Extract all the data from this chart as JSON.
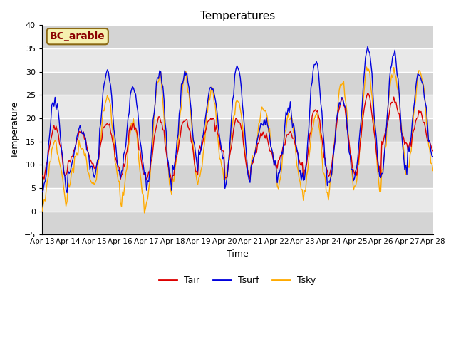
{
  "title": "Temperatures",
  "xlabel": "Time",
  "ylabel": "Temperature",
  "ylim": [
    -5,
    40
  ],
  "yticks": [
    -5,
    0,
    5,
    10,
    15,
    20,
    25,
    30,
    35,
    40
  ],
  "x_tick_labels": [
    "Apr 13",
    "Apr 14",
    "Apr 15",
    "Apr 16",
    "Apr 17",
    "Apr 18",
    "Apr 19",
    "Apr 20",
    "Apr 21",
    "Apr 22",
    "Apr 23",
    "Apr 24",
    "Apr 25",
    "Apr 26",
    "Apr 27",
    "Apr 28"
  ],
  "station_label": "BC_arable",
  "line_colors": {
    "Tair": "#dd0000",
    "Tsurf": "#0000dd",
    "Tsky": "#ffaa00"
  },
  "plot_bg_color": "#e8e8e8",
  "grid_color": "#ffffff",
  "band_color": "#d8d8d8",
  "legend_labels": [
    "Tair",
    "Tsurf",
    "Tsky"
  ],
  "day_peaks_surf": [
    24,
    18,
    30,
    27,
    30,
    30,
    27,
    31,
    20,
    22,
    32,
    25,
    35,
    34,
    30
  ],
  "day_troughs_surf": [
    4,
    8,
    8,
    7,
    5,
    9,
    12,
    6,
    10,
    7,
    6,
    6,
    8,
    8,
    12
  ],
  "day_peaks_air": [
    18,
    17,
    19,
    19,
    20,
    20,
    20,
    20,
    17,
    17,
    22,
    24,
    25,
    24,
    21
  ],
  "day_troughs_air": [
    7,
    10,
    9,
    7,
    7,
    8,
    13,
    7,
    10,
    10,
    8,
    8,
    8,
    14,
    13
  ],
  "day_peaks_sky": [
    15,
    14,
    25,
    19,
    29,
    29,
    26,
    24,
    22,
    21,
    21,
    28,
    31,
    31,
    30
  ],
  "day_troughs_sky": [
    1,
    6,
    6,
    1,
    3,
    6,
    7,
    7,
    10,
    4,
    3,
    5,
    5,
    9,
    9
  ]
}
